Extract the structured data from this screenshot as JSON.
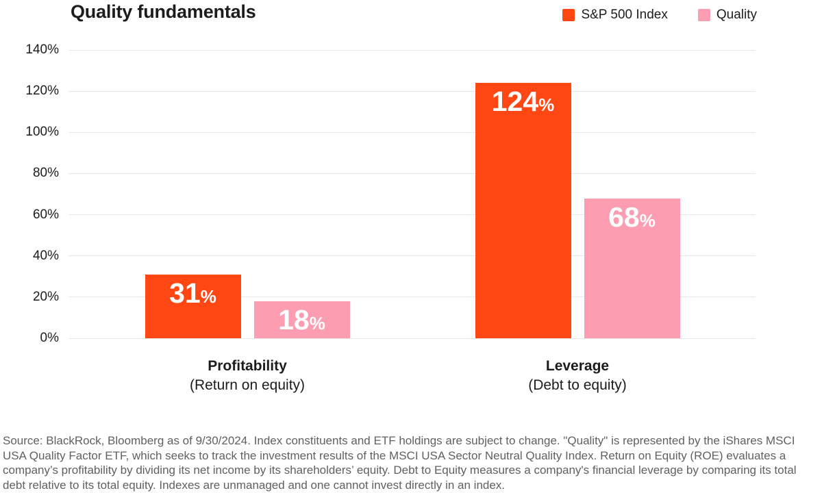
{
  "chart_data": {
    "type": "bar",
    "title": "Quality fundamentals",
    "categories": [
      "Profitability",
      "Leverage"
    ],
    "category_sublabels": [
      "(Return on equity)",
      "(Debt to equity)"
    ],
    "series": [
      {
        "name": "S&P 500 Index",
        "color": "#FF4713",
        "values": [
          31,
          124
        ]
      },
      {
        "name": "Quality",
        "color": "#FC9DB1",
        "values": [
          18,
          68
        ]
      }
    ],
    "value_suffix": "%",
    "ylim": [
      0,
      140
    ],
    "ytick_step": 20,
    "ytick_suffix": "%",
    "grid": true,
    "legend_position": "top-right",
    "bar_label_color": "#ffffff",
    "gridline_color": "#e8e6e6"
  },
  "footer": {
    "source_text": "Source: BlackRock, Bloomberg as of 9/30/2024. Index constituents and ETF holdings are subject to change. \"Quality\" is represented by the iShares MSCI USA Quality Factor ETF, which seeks to track the investment results of the MSCI USA Sector Neutral Quality Index. Return on Equity (ROE) evaluates a company’s profitability by dividing its net income by its shareholders’ equity. Debt to Equity measures a company's financial leverage by comparing its total debt relative to its total equity. Indexes are unmanaged and one cannot invest directly in an index."
  }
}
